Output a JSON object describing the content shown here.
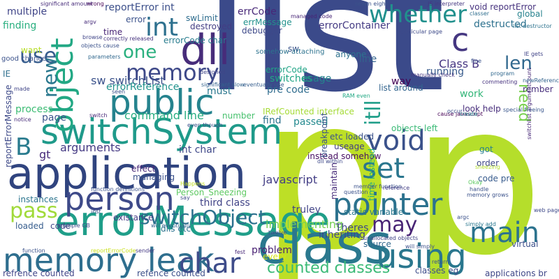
{
  "words": [
    {
      "text": "list",
      "color": "#3b4a8a"
    },
    {
      "text": "p",
      "color": "#bddf26"
    },
    {
      "text": "p",
      "color": "#b5de2b"
    },
    {
      "text": "application",
      "color": "#30447f"
    },
    {
      "text": "errorMessage",
      "color": "#1f9e89"
    },
    {
      "text": "class",
      "color": "#2a788e"
    },
    {
      "text": "switchSystem",
      "color": "#1f9a8a"
    },
    {
      "text": "person",
      "color": "#3e4a89"
    },
    {
      "text": "pointer",
      "color": "#2c728e"
    },
    {
      "text": "memory leak",
      "color": "#2e6e8e"
    },
    {
      "text": "dll",
      "color": "#472c7a"
    },
    {
      "text": "public",
      "color": "#25838e"
    },
    {
      "text": "object",
      "color": "#22a884"
    },
    {
      "text": "switchObject",
      "color": "#2c718e"
    },
    {
      "text": "char",
      "color": "#3e4c8a"
    },
    {
      "text": "using",
      "color": "#2a778e"
    },
    {
      "text": "main",
      "color": "#2c738e"
    },
    {
      "text": "set",
      "color": "#2a768e"
    },
    {
      "text": "void",
      "color": "#3b528b"
    },
    {
      "text": "may",
      "color": "#482475"
    },
    {
      "text": "memory",
      "color": "#3e4989"
    },
    {
      "text": "pass",
      "color": "#a0da39"
    },
    {
      "text": "whether",
      "color": "#21908d"
    },
    {
      "text": "counted classes",
      "color": "#3aba76"
    },
    {
      "text": "c",
      "color": "#453781"
    },
    {
      "text": "int",
      "color": "#2d708e"
    },
    {
      "text": "one",
      "color": "#2ab07f"
    },
    {
      "text": "len",
      "color": "#31688e"
    },
    {
      "text": "use",
      "color": "#365c8d"
    },
    {
      "text": "new",
      "color": "#2a788e"
    },
    {
      "text": "B",
      "color": "#297b8e"
    },
    {
      "text": "itll",
      "color": "#1f9e89"
    },
    {
      "text": "need",
      "color": "#7ad151"
    },
    {
      "text": "command line",
      "color": "#27ad81"
    },
    {
      "text": "arguments",
      "color": "#443983"
    },
    {
      "text": "sw switchList",
      "color": "#3b528b"
    },
    {
      "text": "errorReference",
      "color": "#20928c"
    },
    {
      "text": "int char",
      "color": "#3f4889"
    },
    {
      "text": "third class",
      "color": "#414487"
    },
    {
      "text": "javascript",
      "color": "#433e85"
    },
    {
      "text": "implementing",
      "color": "#75d054"
    },
    {
      "text": "problem",
      "color": "#482173"
    },
    {
      "text": "inheriting",
      "color": "#404688"
    },
    {
      "text": "Theres",
      "color": "#3f4788"
    },
    {
      "text": "line",
      "color": "#33638d"
    },
    {
      "text": "usage",
      "color": "#25848e"
    },
    {
      "text": "switches",
      "color": "#21a585"
    },
    {
      "text": "list around",
      "color": "#32648e"
    },
    {
      "text": "Class B",
      "color": "#453581"
    },
    {
      "text": "running",
      "color": "#375a8c"
    },
    {
      "text": "work",
      "color": "#34b679"
    },
    {
      "text": "look help",
      "color": "#472d7b"
    },
    {
      "text": "errCode",
      "color": "#482878"
    },
    {
      "text": "errMessage",
      "color": "#21918c"
    },
    {
      "text": "errorContainer",
      "color": "#443a83"
    },
    {
      "text": "reportError int",
      "color": "#3c4f8a"
    },
    {
      "text": "swLimit",
      "color": "#2e6d8e"
    },
    {
      "text": "destroyed",
      "color": "#433d84"
    },
    {
      "text": "errorCode char",
      "color": "#287c8e"
    },
    {
      "text": "destructed",
      "color": "#2d718e"
    },
    {
      "text": "void reportError",
      "color": "#46327e"
    },
    {
      "text": "global",
      "color": "#26828e"
    },
    {
      "text": "rember",
      "color": "#472e7c"
    },
    {
      "text": "time",
      "color": "#482475"
    },
    {
      "text": "error",
      "color": "#3b528b"
    },
    {
      "text": "finding",
      "color": "#29af7f"
    },
    {
      "text": "multiple",
      "color": "#404588"
    },
    {
      "text": "want",
      "color": "#b8de29"
    },
    {
      "text": "process",
      "color": "#3dbc74"
    },
    {
      "text": "page",
      "color": "#3a548c"
    },
    {
      "text": "gt",
      "color": "#472a7a"
    },
    {
      "text": "instances",
      "color": "#2b748e"
    },
    {
      "text": "loaded",
      "color": "#365d8d"
    },
    {
      "text": "code",
      "color": "#3f4788"
    },
    {
      "text": "existance",
      "color": "#443983"
    },
    {
      "text": "effect",
      "color": "#482878"
    },
    {
      "text": "managing",
      "color": "#3b518b"
    },
    {
      "text": "dlls etc",
      "color": "#2c728e"
    },
    {
      "text": "Person_Sneezing",
      "color": "#5ec962"
    },
    {
      "text": "number",
      "color": "#48c16e"
    },
    {
      "text": "must",
      "color": "#2a778e"
    },
    {
      "text": "pre code",
      "color": "#2f6c8e"
    },
    {
      "text": "find",
      "color": "#2c738e"
    },
    {
      "text": "passed",
      "color": "#23898e"
    },
    {
      "text": "instead somehow",
      "color": "#471063"
    },
    {
      "text": "breakpoint",
      "color": "#3b528b"
    },
    {
      "text": "source",
      "color": "#31688e"
    },
    {
      "text": "every",
      "color": "#d8e219"
    },
    {
      "text": "truley",
      "color": "#414487"
    },
    {
      "text": "useage",
      "color": "#433e85"
    },
    {
      "text": "order",
      "color": "#3f4889"
    },
    {
      "text": "got",
      "color": "#27808e"
    },
    {
      "text": "code pre",
      "color": "#375b8d"
    },
    {
      "text": "virtual",
      "color": "#3c508b"
    },
    {
      "text": "classes eg",
      "color": "#3d4d8a"
    },
    {
      "text": "reportErrorMessage",
      "color": "#3e4a89"
    },
    {
      "text": "refrence counted",
      "color": "#404588"
    },
    {
      "text": "refence counted",
      "color": "#3c4f8a"
    },
    {
      "text": "IE",
      "color": "#2e6f8e"
    },
    {
      "text": "IRefCounted interface",
      "color": "#a5db36"
    },
    {
      "text": "anyone",
      "color": "#2d718e"
    },
    {
      "text": "sw",
      "color": "#3a538b"
    },
    {
      "text": "errorCode",
      "color": "#20a486"
    },
    {
      "text": "debugger",
      "color": "#3e4989"
    },
    {
      "text": "way",
      "color": "#440154"
    },
    {
      "text": "maintain",
      "color": "#472c7a"
    },
    {
      "text": "etc loaded",
      "color": "#3b528b"
    },
    {
      "text": "static variable",
      "color": "#2a788e"
    },
    {
      "text": "time instead",
      "color": "#26ad81"
    },
    {
      "text": "applications br",
      "color": "#3f4788"
    },
    {
      "text": "objects left",
      "color": "#3aba76"
    },
    {
      "text": "good chance",
      "color": "#3b528b"
    },
    {
      "text": "switchlist argumentCount",
      "color": "#482878"
    },
    {
      "text": "RAM even",
      "color": "#22a884"
    },
    {
      "text": "somehow attaching",
      "color": "#2c728e"
    },
    {
      "text": "significant slow",
      "color": "#33638d"
    },
    {
      "text": "argv",
      "color": "#472d7b"
    },
    {
      "text": "objects cause",
      "color": "#3b528b"
    },
    {
      "text": "correctly released",
      "color": "#46337f"
    },
    {
      "text": "parameters",
      "color": "#31688e"
    },
    {
      "text": "designed",
      "color": "#404688"
    },
    {
      "text": "eventually use",
      "color": "#365d8d"
    },
    {
      "text": "seven eight",
      "color": "#3b528b"
    },
    {
      "text": "managed code",
      "color": "#482576"
    },
    {
      "text": "JS interpreter",
      "color": "#453781"
    },
    {
      "text": "particular page",
      "color": "#3e4a89"
    },
    {
      "text": "list destructor",
      "color": "#2c728e"
    },
    {
      "text": "IE gets",
      "color": "#414487"
    },
    {
      "text": "program",
      "color": "#31688e"
    },
    {
      "text": "newReference",
      "color": "#33638d"
    },
    {
      "text": "commenting",
      "color": "#46327e"
    },
    {
      "text": "special freeing",
      "color": "#39568c"
    },
    {
      "text": "cause javascript",
      "color": "#440154"
    },
    {
      "text": "manually check",
      "color": "#453781"
    },
    {
      "text": "create",
      "color": "#25858e"
    },
    {
      "text": "web page",
      "color": "#3e4989"
    },
    {
      "text": "simply add",
      "color": "#2a778e"
    },
    {
      "text": "Okay",
      "color": "#5ec962"
    },
    {
      "text": "handle",
      "color": "#3b528b"
    },
    {
      "text": "wrong",
      "color": "#440154"
    },
    {
      "text": "significant amount",
      "color": "#472c7a"
    },
    {
      "text": "browse",
      "color": "#404588"
    },
    {
      "text": "fine",
      "color": "#3b528b"
    },
    {
      "text": "classer",
      "color": "#2e6e8e"
    },
    {
      "text": "sender",
      "color": "#443983"
    },
    {
      "text": "fest",
      "color": "#482878"
    },
    {
      "text": "argc",
      "color": "#3b528b"
    },
    {
      "text": "twelve",
      "color": "#3c4f8a"
    },
    {
      "text": "return",
      "color": "#3b528b"
    },
    {
      "text": "will simply",
      "color": "#3c508b"
    },
    {
      "text": "function",
      "color": "#3b528b"
    },
    {
      "text": "multiple GB",
      "color": "#3e4a89"
    },
    {
      "text": "will eventually",
      "color": "#33638d"
    },
    {
      "text": "reportErrorCode",
      "color": "#cae11f"
    },
    {
      "text": "member function",
      "color": "#3b528b"
    },
    {
      "text": "unallocated objects",
      "color": "#414487"
    },
    {
      "text": "dll within",
      "color": "#3e4989"
    },
    {
      "text": "question",
      "color": "#3b528b"
    },
    {
      "text": "reference",
      "color": "#433e85"
    },
    {
      "text": "memory grows",
      "color": "#3b528b"
    },
    {
      "text": "sneezing",
      "color": "#b5de2b"
    },
    {
      "text": "function definitions",
      "color": "#3b528b"
    },
    {
      "text": "Happens",
      "color": "#c2df23"
    },
    {
      "text": "notice",
      "color": "#472c7a"
    },
    {
      "text": "made",
      "color": "#404588"
    },
    {
      "text": "seen",
      "color": "#3b528b"
    },
    {
      "text": "say",
      "color": "#3e4a89"
    },
    {
      "text": "switch",
      "color": "#482878"
    },
    {
      "text": "even though",
      "color": "#3b528b"
    },
    {
      "text": "occur",
      "color": "#3c508b"
    },
    {
      "text": "inst",
      "color": "#3b528b"
    }
  ]
}
